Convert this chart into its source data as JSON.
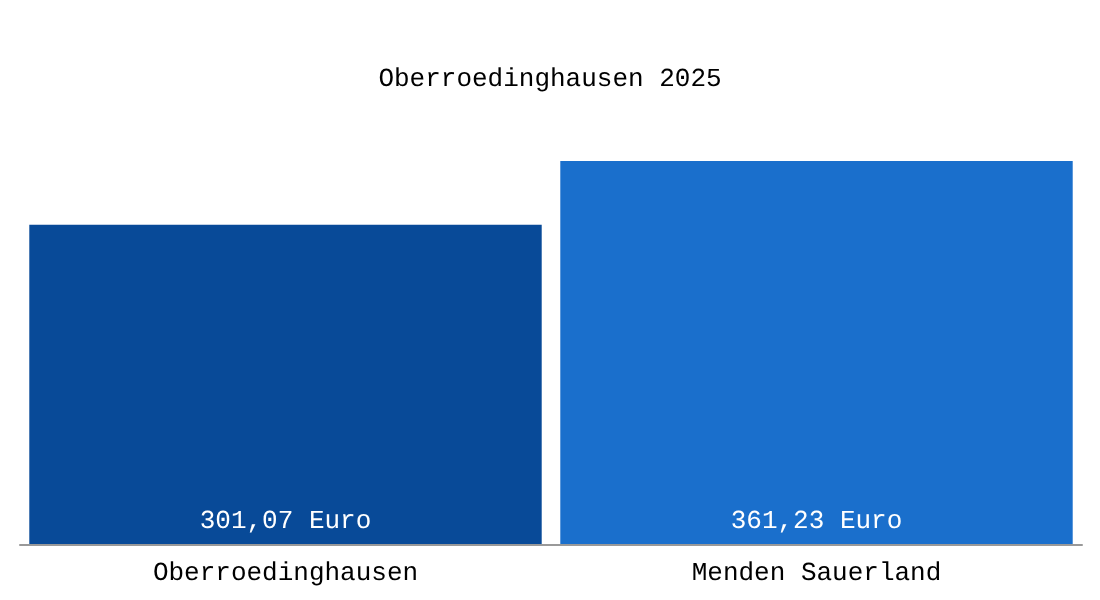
{
  "chart_data": {
    "type": "bar",
    "title": "Oberroedinghausen 2025",
    "categories": [
      "Oberroedinghausen",
      "Menden Sauerland"
    ],
    "values": [
      301.07,
      361.23
    ],
    "colors": [
      "#084a98",
      "#1a6fcc"
    ],
    "value_labels": [
      "301,07 Euro",
      "361,23 Euro"
    ],
    "tick_labels": "x"
  }
}
